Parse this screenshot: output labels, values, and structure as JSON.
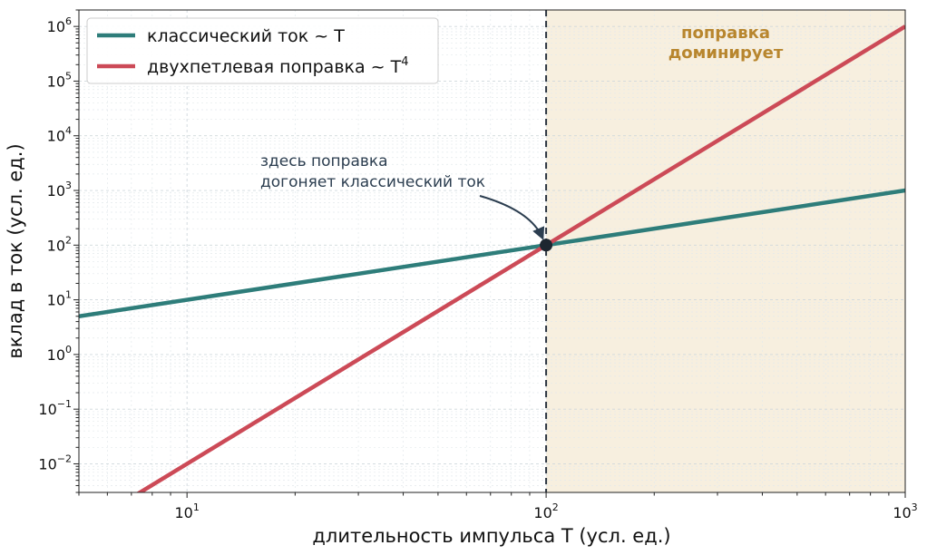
{
  "chart_data": {
    "type": "line",
    "xscale": "log",
    "yscale": "log",
    "xlim": [
      5,
      1000
    ],
    "ylim": [
      0.003,
      2000000
    ],
    "xlabel": "длительность импульса  T  (усл. ед.)",
    "ylabel": "вклад в ток  (усл. ед.)",
    "x_ticks": [
      {
        "value": 10,
        "base": "10",
        "exp": "1"
      },
      {
        "value": 100,
        "base": "10",
        "exp": "2"
      },
      {
        "value": 1000,
        "base": "10",
        "exp": "3"
      }
    ],
    "y_ticks": [
      {
        "value": 0.01,
        "base": "10",
        "exp": "−2"
      },
      {
        "value": 0.1,
        "base": "10",
        "exp": "−1"
      },
      {
        "value": 1,
        "base": "10",
        "exp": "0"
      },
      {
        "value": 10,
        "base": "10",
        "exp": "1"
      },
      {
        "value": 100,
        "base": "10",
        "exp": "2"
      },
      {
        "value": 1000,
        "base": "10",
        "exp": "3"
      },
      {
        "value": 10000,
        "base": "10",
        "exp": "4"
      },
      {
        "value": 100000,
        "base": "10",
        "exp": "5"
      },
      {
        "value": 1000000,
        "base": "10",
        "exp": "6"
      }
    ],
    "grid": true,
    "legend_position": "top-left",
    "series": [
      {
        "name": "классический ток  ~ T",
        "name_sup": "",
        "color": "#2e7d7a",
        "x": [
          5,
          1000
        ],
        "y": [
          5,
          1000
        ]
      },
      {
        "name": "двухпетлевая поправка  ~ T",
        "name_sup": "4",
        "color": "#cc4a57",
        "x": [
          5,
          1000
        ],
        "y": [
          0.000625,
          1000000
        ]
      }
    ],
    "vline": {
      "x": 100,
      "style": "dashed",
      "color": "#2b3440"
    },
    "shaded_region": {
      "x_from": 100,
      "x_to": 1000,
      "color": "#f7efdf",
      "label_lines": [
        "поправка",
        "доминирует"
      ],
      "label_color": "#b8862e"
    },
    "crossover_point": {
      "x": 100,
      "y": 100,
      "color": "#1e2630"
    },
    "annotation": {
      "lines": [
        "здесь поправка",
        "догоняет классический ток"
      ],
      "color": "#2c3e50",
      "points_to": {
        "x": 100,
        "y": 100
      }
    }
  }
}
